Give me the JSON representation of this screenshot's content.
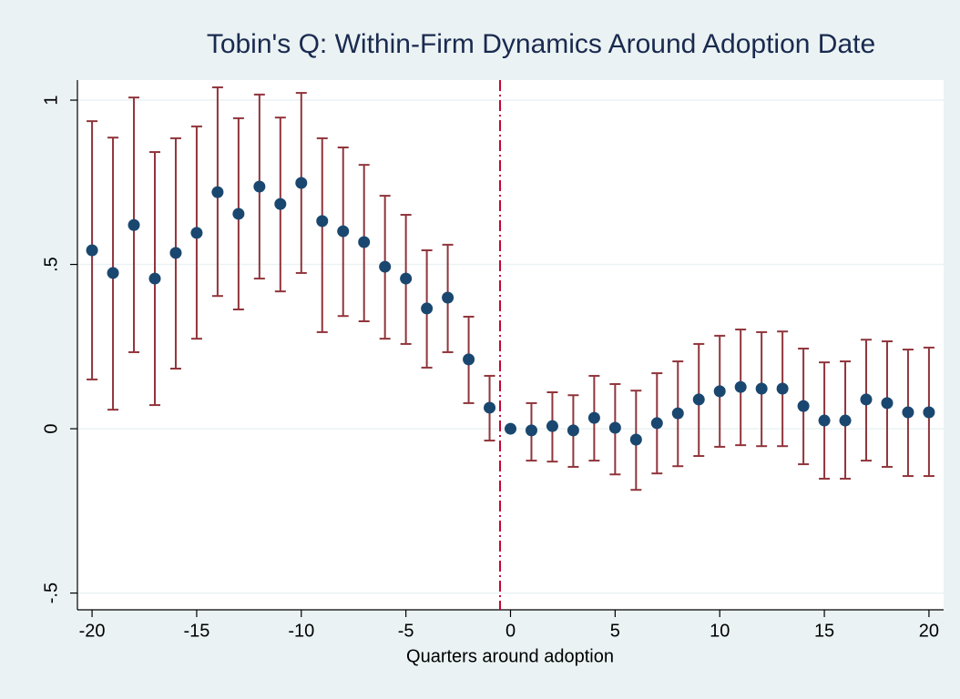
{
  "chart_data": {
    "type": "errorbar",
    "title": "Tobin's Q: Within-Firm Dynamics Around Adoption Date",
    "x_label": "Quarters around adoption",
    "x": [
      -20,
      -19,
      -18,
      -17,
      -16,
      -15,
      -14,
      -13,
      -12,
      -11,
      -10,
      -9,
      -8,
      -7,
      -6,
      -5,
      -4,
      -3,
      -2,
      -1,
      0,
      1,
      2,
      3,
      4,
      5,
      6,
      7,
      8,
      9,
      10,
      11,
      12,
      13,
      14,
      15,
      16,
      17,
      18,
      19,
      20
    ],
    "values": [
      0.543,
      0.474,
      0.62,
      0.457,
      0.535,
      0.596,
      0.72,
      0.654,
      0.737,
      0.684,
      0.748,
      0.632,
      0.601,
      0.568,
      0.493,
      0.457,
      0.366,
      0.399,
      0.211,
      0.064,
      0.0,
      -0.005,
      0.008,
      -0.005,
      0.033,
      0.003,
      -0.033,
      0.017,
      0.047,
      0.089,
      0.114,
      0.127,
      0.122,
      0.122,
      0.069,
      0.025,
      0.025,
      0.089,
      0.078,
      0.05,
      0.05
    ],
    "lower": [
      0.15,
      0.058,
      0.233,
      0.072,
      0.183,
      0.274,
      0.404,
      0.363,
      0.457,
      0.418,
      0.474,
      0.294,
      0.343,
      0.327,
      0.274,
      0.258,
      0.186,
      0.233,
      0.078,
      -0.036,
      null,
      -0.097,
      -0.1,
      -0.116,
      -0.097,
      -0.139,
      -0.186,
      -0.136,
      -0.114,
      -0.083,
      -0.055,
      -0.05,
      -0.053,
      -0.053,
      -0.108,
      -0.152,
      -0.152,
      -0.097,
      -0.116,
      -0.144,
      -0.144
    ],
    "upper": [
      0.936,
      0.886,
      1.008,
      0.842,
      0.884,
      0.92,
      1.039,
      0.945,
      1.017,
      0.947,
      1.022,
      0.884,
      0.856,
      0.803,
      0.709,
      0.651,
      0.543,
      0.56,
      0.341,
      0.161,
      null,
      0.078,
      0.111,
      0.102,
      0.161,
      0.136,
      0.116,
      0.169,
      0.205,
      0.258,
      0.283,
      0.302,
      0.294,
      0.296,
      0.244,
      0.202,
      0.205,
      0.271,
      0.266,
      0.241,
      0.247
    ],
    "color": "#1a476f",
    "bar_color": "#90353b",
    "vline": -0.5,
    "vline_color": "#c10534",
    "xlim": [
      -20.7,
      20.7
    ],
    "ylim": [
      -0.551,
      1.061
    ],
    "xticks": [
      -20,
      -15,
      -10,
      -5,
      0,
      5,
      10,
      15,
      20
    ],
    "yticks": [
      {
        "value": -0.5,
        "label": "-.5"
      },
      0,
      {
        "value": 0.5,
        "label": ".5"
      },
      1
    ],
    "grid": true
  }
}
